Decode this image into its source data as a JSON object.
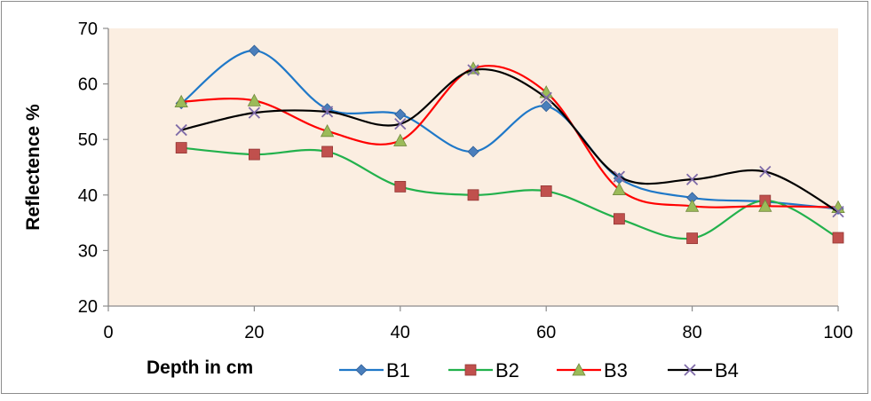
{
  "chart_data": {
    "type": "line",
    "title": "",
    "xlabel": "Depth in cm",
    "ylabel": "Reflectence %",
    "xlim": [
      0,
      100
    ],
    "ylim": [
      20,
      70
    ],
    "x_ticks": [
      0,
      20,
      40,
      60,
      80,
      100
    ],
    "y_ticks": [
      20,
      30,
      40,
      50,
      60,
      70
    ],
    "grid": false,
    "smooth": true,
    "legend_position": "bottom",
    "plot_background": "#fbeee1",
    "x": [
      10,
      20,
      30,
      40,
      50,
      60,
      70,
      80,
      90,
      100
    ],
    "series": [
      {
        "name": "B1",
        "color": "#4a7ebb",
        "marker": "diamond",
        "line_color": "#1f78c8",
        "values": [
          56.5,
          66.0,
          55.5,
          54.5,
          47.8,
          56.0,
          43.0,
          39.5,
          38.8,
          37.5
        ]
      },
      {
        "name": "B2",
        "color": "#c0504d",
        "marker": "square",
        "line_color": "#22b14c",
        "values": [
          48.5,
          47.3,
          47.8,
          41.5,
          40.0,
          40.7,
          35.7,
          32.2,
          39.0,
          32.3
        ]
      },
      {
        "name": "B3",
        "color": "#9bbb59",
        "marker": "triangle",
        "line_color": "#ff0000",
        "values": [
          56.8,
          57.0,
          51.5,
          49.8,
          62.8,
          58.5,
          41.0,
          38.0,
          38.0,
          37.8
        ]
      },
      {
        "name": "B4",
        "color": "#7f6ba8",
        "marker": "x",
        "line_color": "#000000",
        "values": [
          51.7,
          54.8,
          55.0,
          52.8,
          62.5,
          57.5,
          43.3,
          42.8,
          44.2,
          37.0
        ]
      }
    ]
  }
}
